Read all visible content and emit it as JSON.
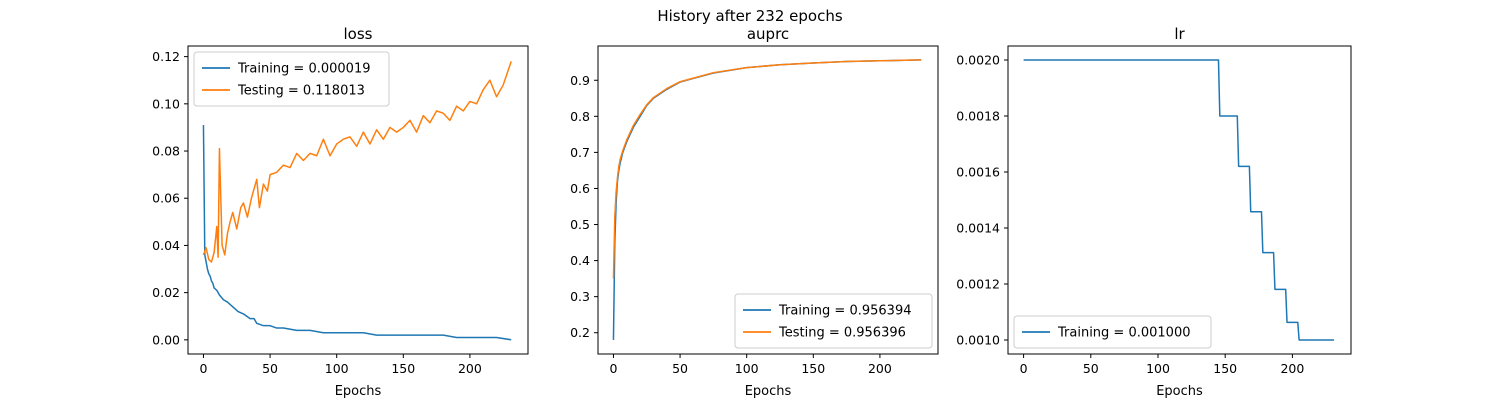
{
  "figure": {
    "suptitle": "History after 232 epochs"
  },
  "chart_data": [
    {
      "type": "line",
      "title": "loss",
      "xlabel": "Epochs",
      "ylabel": "",
      "xlim": [
        -11.6,
        243.6
      ],
      "ylim": [
        -0.006,
        0.1245
      ],
      "xticks": [
        0,
        50,
        100,
        150,
        200
      ],
      "yticks": [
        0.0,
        0.02,
        0.04,
        0.06,
        0.08,
        0.1,
        0.12
      ],
      "ytick_labels": [
        "0.00",
        "0.02",
        "0.04",
        "0.06",
        "0.08",
        "0.10",
        "0.12"
      ],
      "grid": false,
      "legend_position": "upper-left",
      "series": [
        {
          "name": "Training = 0.000019",
          "color": "#1f77b4",
          "x": [
            0,
            1,
            2,
            3,
            4,
            5,
            6,
            7,
            8,
            10,
            12,
            15,
            18,
            22,
            26,
            30,
            35,
            38,
            40,
            45,
            50,
            55,
            60,
            70,
            80,
            90,
            100,
            110,
            120,
            130,
            140,
            150,
            160,
            170,
            180,
            190,
            200,
            210,
            220,
            231
          ],
          "y": [
            0.091,
            0.036,
            0.033,
            0.03,
            0.028,
            0.027,
            0.025,
            0.024,
            0.022,
            0.021,
            0.019,
            0.017,
            0.016,
            0.014,
            0.012,
            0.011,
            0.009,
            0.009,
            0.007,
            0.006,
            0.006,
            0.005,
            0.005,
            0.004,
            0.004,
            0.003,
            0.003,
            0.003,
            0.003,
            0.002,
            0.002,
            0.002,
            0.002,
            0.002,
            0.002,
            0.001,
            0.001,
            0.001,
            0.001,
            1.9e-05
          ]
        },
        {
          "name": "Testing = 0.118013",
          "color": "#ff7f0e",
          "x": [
            0,
            2,
            4,
            6,
            8,
            10,
            11,
            12,
            14,
            16,
            18,
            20,
            22,
            25,
            28,
            30,
            33,
            36,
            40,
            42,
            45,
            48,
            50,
            55,
            60,
            65,
            70,
            75,
            80,
            85,
            90,
            95,
            100,
            105,
            110,
            115,
            120,
            125,
            130,
            135,
            140,
            145,
            150,
            155,
            160,
            165,
            170,
            175,
            180,
            185,
            190,
            195,
            200,
            205,
            210,
            215,
            220,
            225,
            231
          ],
          "y": [
            0.036,
            0.039,
            0.034,
            0.033,
            0.037,
            0.048,
            0.035,
            0.081,
            0.04,
            0.036,
            0.045,
            0.05,
            0.054,
            0.047,
            0.056,
            0.058,
            0.052,
            0.06,
            0.068,
            0.056,
            0.066,
            0.063,
            0.07,
            0.071,
            0.074,
            0.073,
            0.079,
            0.076,
            0.079,
            0.078,
            0.085,
            0.078,
            0.083,
            0.085,
            0.086,
            0.082,
            0.088,
            0.083,
            0.089,
            0.085,
            0.09,
            0.088,
            0.09,
            0.093,
            0.088,
            0.095,
            0.092,
            0.097,
            0.096,
            0.093,
            0.099,
            0.097,
            0.101,
            0.1,
            0.106,
            0.11,
            0.103,
            0.108,
            0.118
          ]
        }
      ]
    },
    {
      "type": "line",
      "title": "auprc",
      "xlabel": "Epochs",
      "ylabel": "",
      "xlim": [
        -11.6,
        243.6
      ],
      "ylim": [
        0.141,
        0.995
      ],
      "xticks": [
        0,
        50,
        100,
        150,
        200
      ],
      "yticks": [
        0.2,
        0.3,
        0.4,
        0.5,
        0.6,
        0.7,
        0.8,
        0.9
      ],
      "ytick_labels": [
        "0.2",
        "0.3",
        "0.4",
        "0.5",
        "0.6",
        "0.7",
        "0.8",
        "0.9"
      ],
      "grid": false,
      "legend_position": "lower-right",
      "series": [
        {
          "name": "Training = 0.956394",
          "color": "#1f77b4",
          "x": [
            0,
            1,
            2,
            3,
            4,
            5,
            7,
            10,
            15,
            20,
            25,
            30,
            40,
            50,
            60,
            75,
            100,
            125,
            150,
            175,
            200,
            231
          ],
          "y": [
            0.18,
            0.45,
            0.56,
            0.62,
            0.65,
            0.67,
            0.7,
            0.73,
            0.77,
            0.8,
            0.83,
            0.85,
            0.875,
            0.895,
            0.905,
            0.92,
            0.935,
            0.943,
            0.948,
            0.952,
            0.954,
            0.956394
          ]
        },
        {
          "name": "Testing = 0.956396",
          "color": "#ff7f0e",
          "x": [
            0,
            1,
            2,
            3,
            4,
            5,
            7,
            10,
            15,
            20,
            25,
            30,
            40,
            50,
            60,
            75,
            100,
            125,
            150,
            175,
            200,
            231
          ],
          "y": [
            0.35,
            0.52,
            0.59,
            0.63,
            0.66,
            0.68,
            0.705,
            0.735,
            0.775,
            0.805,
            0.832,
            0.852,
            0.877,
            0.896,
            0.906,
            0.921,
            0.935,
            0.943,
            0.948,
            0.952,
            0.954,
            0.956396
          ]
        }
      ]
    },
    {
      "type": "line",
      "title": "lr",
      "xlabel": "Epochs",
      "ylabel": "",
      "xlim": [
        -11.6,
        243.6
      ],
      "ylim": [
        0.00095,
        0.00205
      ],
      "xticks": [
        0,
        50,
        100,
        150,
        200
      ],
      "yticks": [
        0.001,
        0.0012,
        0.0014,
        0.0016,
        0.0018,
        0.002
      ],
      "ytick_labels": [
        "0.0010",
        "0.0012",
        "0.0014",
        "0.0016",
        "0.0018",
        "0.0020"
      ],
      "grid": false,
      "legend_position": "lower-left",
      "series": [
        {
          "name": "Training = 0.001000",
          "color": "#1f77b4",
          "x": [
            0,
            145,
            146,
            159,
            160,
            168,
            169,
            177,
            178,
            186,
            187,
            195,
            196,
            204,
            205,
            231
          ],
          "y": [
            0.002,
            0.002,
            0.0018,
            0.0018,
            0.00162,
            0.00162,
            0.001458,
            0.001458,
            0.001312,
            0.001312,
            0.001181,
            0.001181,
            0.001063,
            0.001063,
            0.001,
            0.001
          ]
        }
      ]
    }
  ]
}
